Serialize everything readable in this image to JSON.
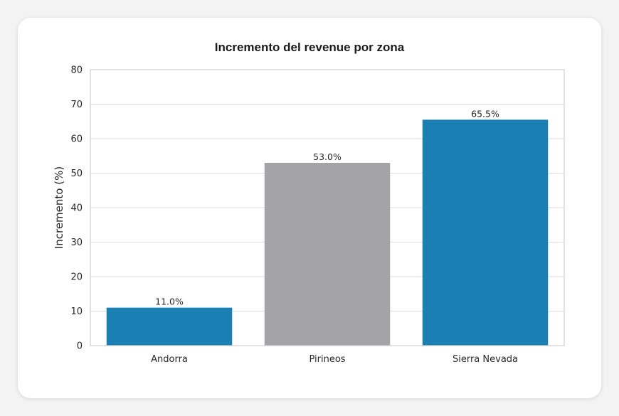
{
  "chart_data": {
    "type": "bar",
    "title": "Incremento del revenue por zona",
    "xlabel": "",
    "ylabel": "Incremento (%)",
    "categories": [
      "Andorra",
      "Pirineos",
      "Sierra Nevada"
    ],
    "values": [
      11.0,
      53.0,
      65.5
    ],
    "value_labels": [
      "11.0%",
      "53.0%",
      "65.5%"
    ],
    "colors": [
      "#1a80b4",
      "#a4a4a6",
      "#1a80b4"
    ],
    "ylim": [
      0,
      80
    ],
    "yticks": [
      0,
      10,
      20,
      30,
      40,
      50,
      60,
      70,
      80
    ],
    "grid": true,
    "legend": "none"
  }
}
